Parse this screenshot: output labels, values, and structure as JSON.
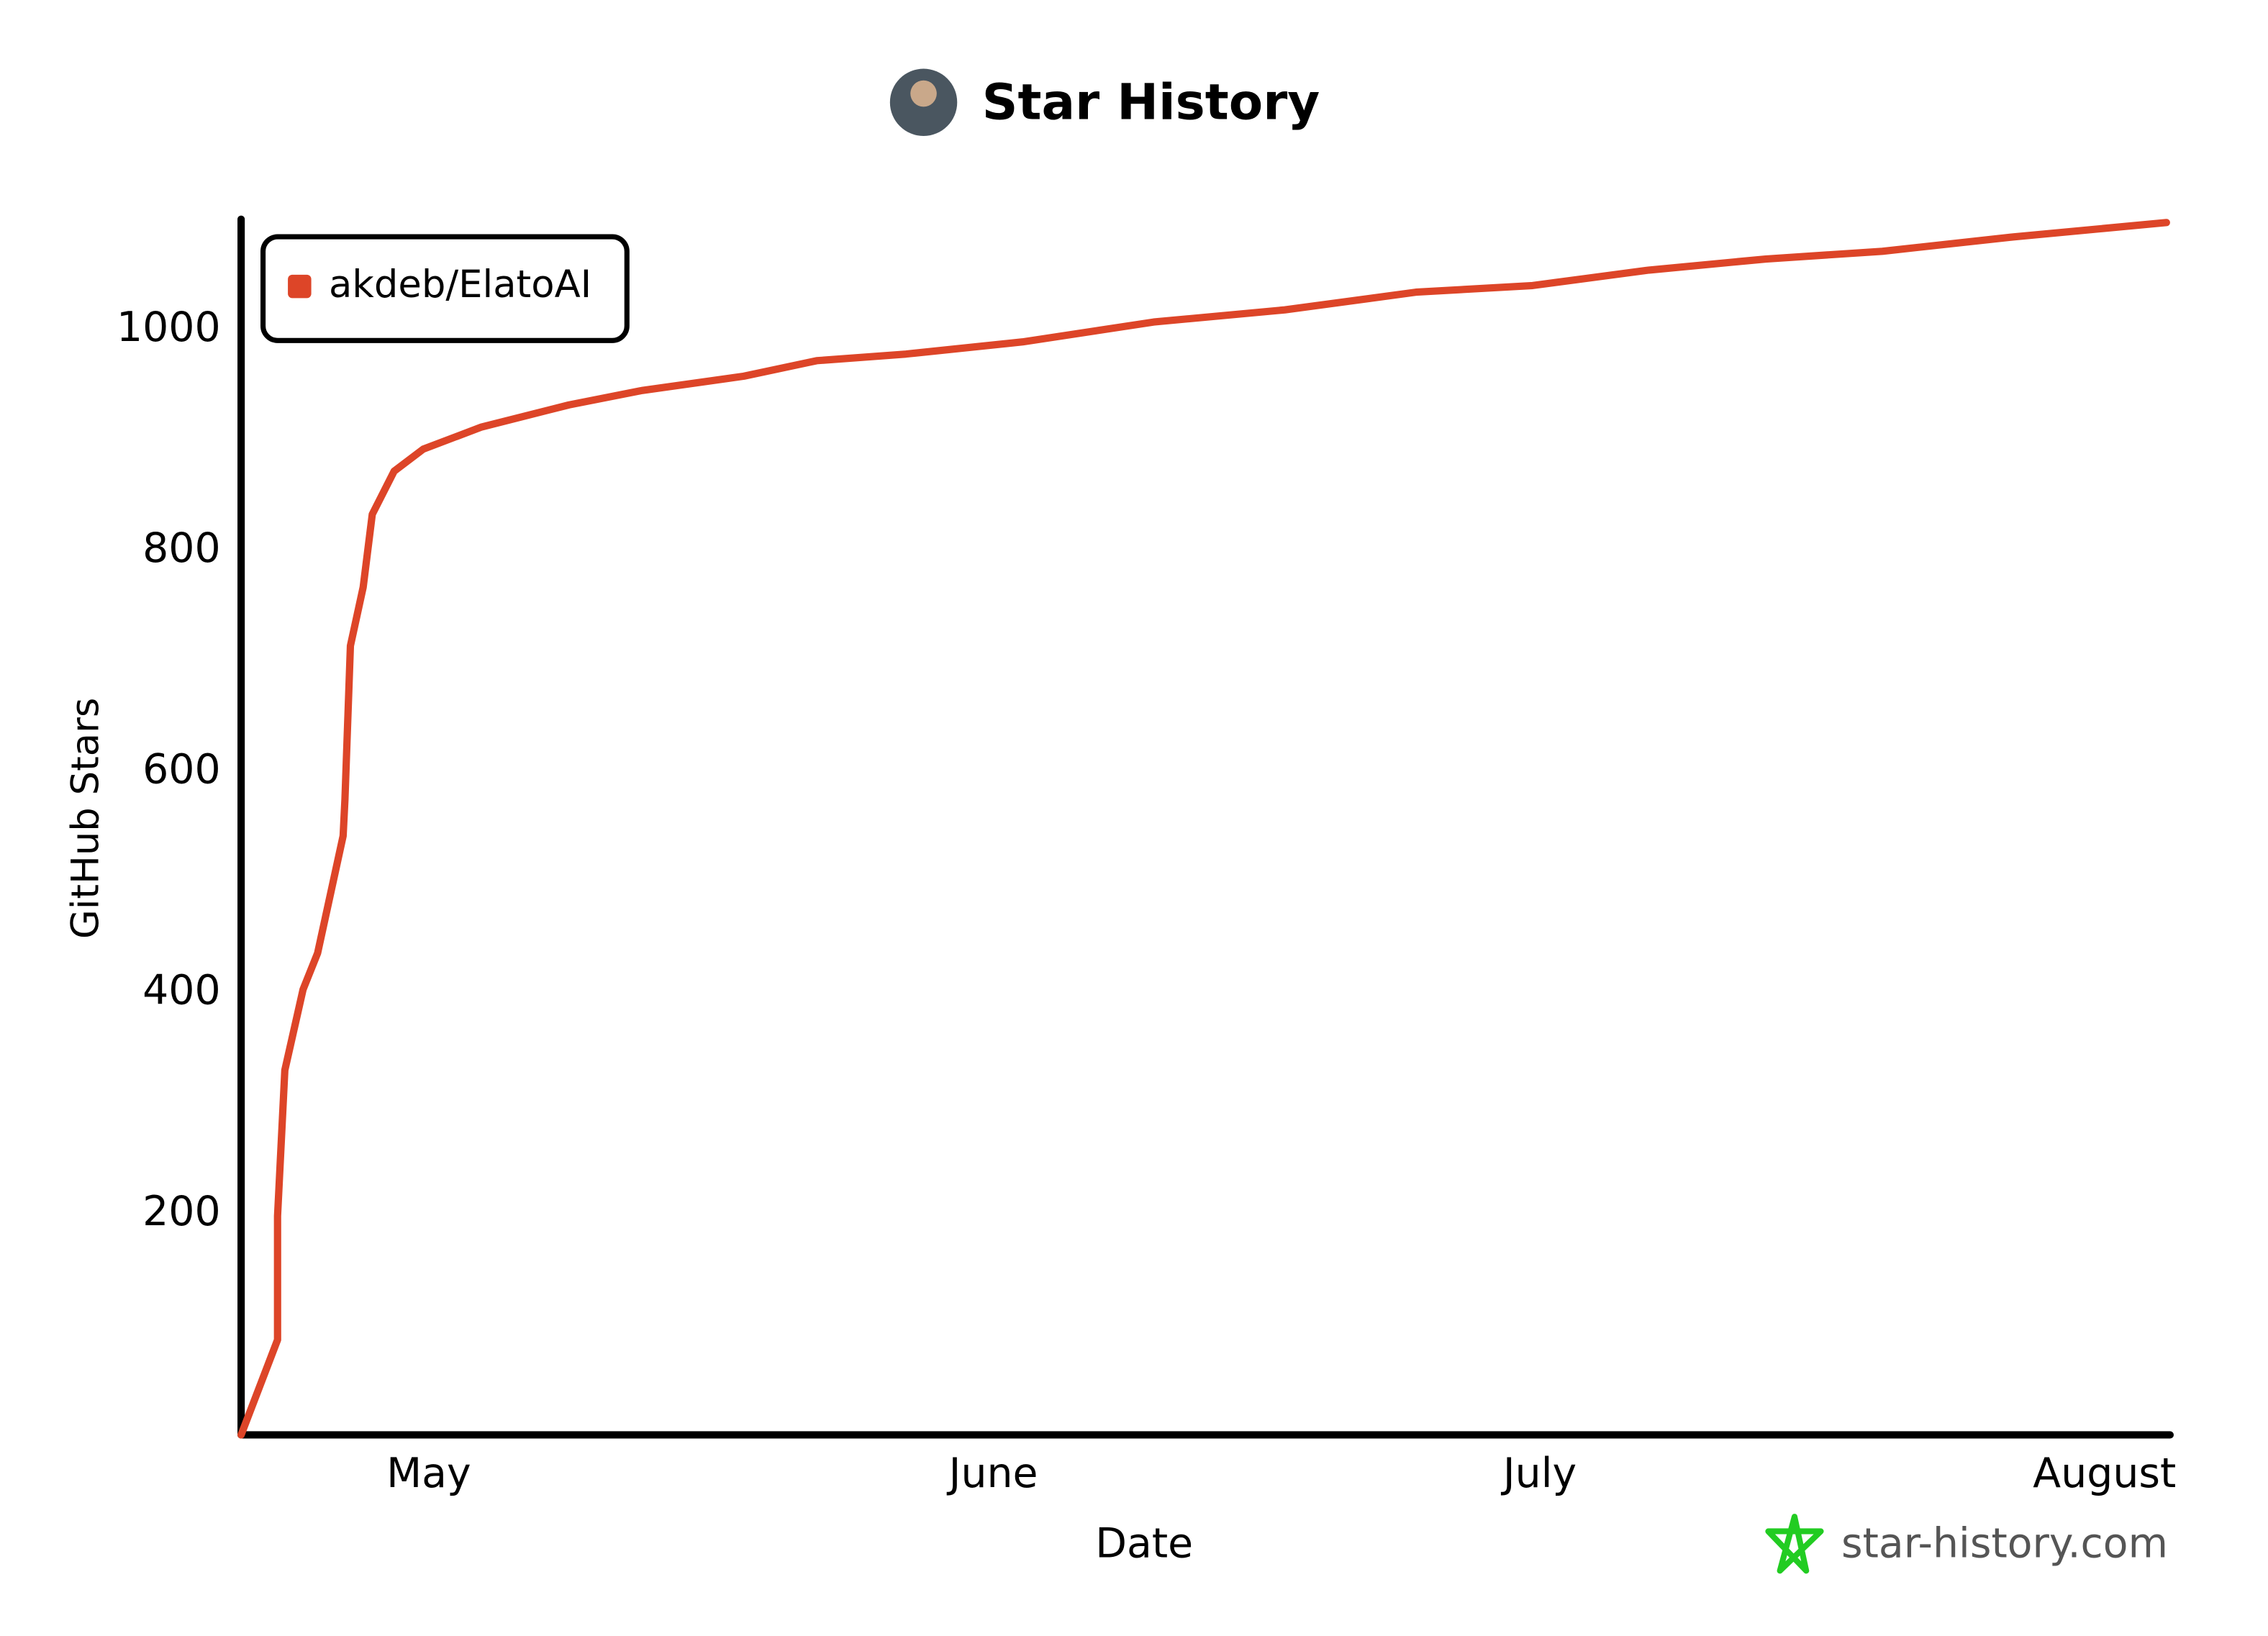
{
  "chart_data": {
    "type": "line",
    "title": "Star History",
    "x_label": "Date",
    "y_label": "GitHub Stars",
    "x": [
      110.7,
      112.7,
      112.7,
      113.1,
      114.1,
      114.9,
      116.3,
      116.4,
      116.7,
      117.4,
      117.9,
      119.1,
      120.7,
      123.9,
      128.7,
      132.7,
      138.3,
      142.3,
      147.2,
      153.6,
      160.8,
      168.0,
      175.2,
      181.6,
      188.0,
      194.4,
      200.8,
      208.0,
      216.4
    ],
    "series": [
      {
        "name": "akdeb/ElatoAI",
        "color": "#dd4528",
        "values": [
          0,
          86,
          198,
          330,
          403,
          436,
          542,
          575,
          714,
          767,
          833,
          872,
          892,
          912,
          932,
          945,
          958,
          972,
          978,
          989,
          1007,
          1018,
          1034,
          1040,
          1054,
          1064,
          1071,
          1084,
          1097
        ]
      }
    ],
    "xlim": [
      110.7,
      216.6
    ],
    "xticks": [
      {
        "value": 121,
        "label": "May"
      },
      {
        "value": 152,
        "label": "June"
      },
      {
        "value": 182,
        "label": "July"
      },
      {
        "value": 213,
        "label": "August"
      }
    ],
    "ylim": [
      0,
      1100
    ],
    "yticks": [
      200,
      400,
      600,
      800,
      1000
    ],
    "grid": false,
    "legend": "top-left",
    "watermark": "star-history.com"
  }
}
